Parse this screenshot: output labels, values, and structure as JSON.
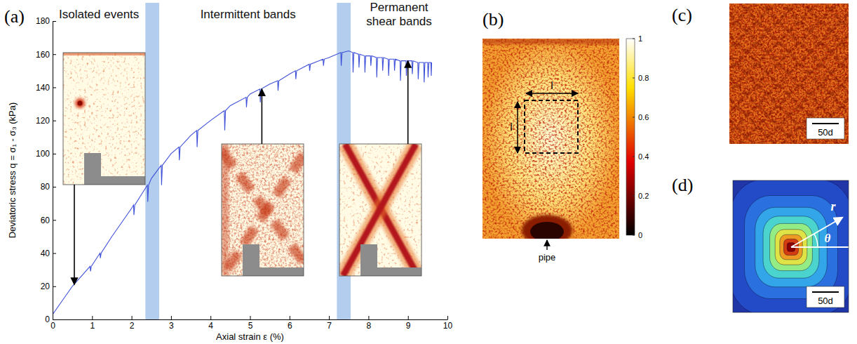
{
  "chart_data": [
    {
      "type": "line",
      "label": "(a)",
      "xlabel": "Axial strain ε (%)",
      "ylabel": "Deviatoric stress q = σ₁ - σ₃ (kPa)",
      "xlim": [
        0,
        10
      ],
      "xticks": [
        0,
        1,
        2,
        3,
        4,
        5,
        6,
        7,
        8,
        9,
        10
      ],
      "ylim": [
        0,
        180
      ],
      "yticks": [
        0,
        20,
        40,
        60,
        80,
        100,
        120,
        140,
        160,
        180
      ],
      "color": "#3f51d8",
      "x": [
        0,
        0.5,
        0.95,
        0.96,
        0.98,
        1.2,
        1.21,
        1.23,
        1.5,
        2,
        2.05,
        2.06,
        2.08,
        2.4,
        2.41,
        2.43,
        2.5,
        2.75,
        2.76,
        2.78,
        3,
        3.2,
        3.21,
        3.23,
        3.5,
        3.65,
        3.66,
        3.68,
        4,
        4.35,
        4.36,
        4.38,
        4.5,
        4.9,
        4.91,
        4.93,
        5,
        5.25,
        5.26,
        5.28,
        5.5,
        5.7,
        5.71,
        5.73,
        6,
        6.15,
        6.16,
        6.18,
        6.5,
        6.51,
        6.53,
        6.85,
        6.86,
        6.88,
        7,
        7.3,
        7.31,
        7.33,
        7.5,
        7.6,
        7.61,
        7.63,
        7.75,
        7.76,
        7.78,
        7.9,
        7.91,
        7.93,
        8.05,
        8.06,
        8.08,
        8.2,
        8.21,
        8.23,
        8.35,
        8.36,
        8.38,
        8.5,
        8.51,
        8.53,
        8.65,
        8.66,
        8.68,
        8.8,
        8.81,
        8.83,
        8.95,
        8.96,
        8.98,
        9.1,
        9.11,
        9.13,
        9.25,
        9.26,
        9.28,
        9.4,
        9.41,
        9.43,
        9.5,
        9.51,
        9.53,
        9.58,
        9.59,
        9.6
      ],
      "values": [
        3,
        20,
        32,
        29,
        32,
        40,
        37,
        40,
        50,
        67,
        69,
        63,
        69,
        81,
        71,
        81,
        85,
        93,
        81,
        93,
        100,
        104,
        96,
        104,
        111,
        114,
        104,
        114,
        120,
        126,
        114,
        126,
        129,
        134,
        128,
        134,
        136,
        139,
        131,
        139,
        142,
        144,
        138,
        144,
        148,
        150,
        145,
        150,
        154,
        150,
        154,
        157,
        153,
        157,
        158,
        161,
        153,
        161,
        162,
        161,
        149,
        161,
        160,
        152,
        160,
        159,
        149,
        159,
        159,
        153,
        159,
        158,
        146,
        158,
        158,
        150,
        158,
        157,
        147,
        157,
        157,
        150,
        157,
        156,
        144,
        156,
        156,
        147,
        156,
        156,
        148,
        156,
        155,
        145,
        155,
        155,
        143,
        155,
        155,
        146,
        155,
        155,
        147,
        155
      ],
      "shaded_ranges": [
        [
          2.35,
          2.7
        ],
        [
          7.2,
          7.55
        ]
      ],
      "annotations": [
        {
          "text": "Isolated events",
          "x": 0.55,
          "y": 21
        },
        {
          "text": "Intermittent bands",
          "x": 5.3,
          "y": 139
        },
        {
          "text": "Permanent shear bands",
          "x": 9.0,
          "y": 156
        }
      ]
    },
    {
      "type": "image",
      "label": "(b)",
      "annotations": [
        {
          "text": "l"
        },
        {
          "text": "l"
        },
        {
          "text": "pipe"
        }
      ],
      "colorbar": {
        "range": [
          0,
          1
        ],
        "ticks": [
          0,
          0.2,
          0.4,
          0.6,
          0.8,
          1
        ]
      }
    },
    {
      "type": "image",
      "label": "(c)",
      "scale_bar": "50d"
    },
    {
      "type": "contour",
      "label": "(d)",
      "scale_bar": "50d",
      "annotations": [
        {
          "text": "r"
        },
        {
          "text": "θ"
        }
      ]
    }
  ]
}
